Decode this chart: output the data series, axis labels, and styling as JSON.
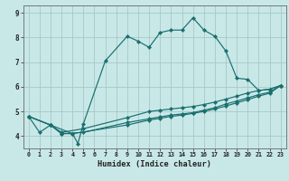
{
  "xlabel": "Humidex (Indice chaleur)",
  "bg_color": "#c8e8e8",
  "grid_color": "#a8c8c8",
  "line_color": "#1a6e6e",
  "xlim": [
    -0.5,
    23.5
  ],
  "ylim": [
    3.5,
    9.3
  ],
  "yticks": [
    4,
    5,
    6,
    7,
    8,
    9
  ],
  "xticks": [
    0,
    1,
    2,
    3,
    4,
    5,
    6,
    7,
    8,
    9,
    10,
    11,
    12,
    13,
    14,
    15,
    16,
    17,
    18,
    19,
    20,
    21,
    22,
    23
  ],
  "line1_x": [
    0,
    1,
    2,
    3,
    4,
    4.5,
    5,
    7,
    9,
    10,
    11,
    12,
    13,
    14,
    15,
    16,
    17,
    18,
    19,
    20,
    21,
    22,
    23
  ],
  "line1_y": [
    4.8,
    4.15,
    4.45,
    4.1,
    4.1,
    3.7,
    4.5,
    7.05,
    8.05,
    7.85,
    7.6,
    8.2,
    8.3,
    8.3,
    8.8,
    8.3,
    8.05,
    7.45,
    6.35,
    6.3,
    5.85,
    5.9,
    6.05
  ],
  "line2_x": [
    0,
    2,
    3,
    5,
    9,
    11,
    12,
    13,
    14,
    15,
    16,
    17,
    18,
    19,
    20,
    21,
    22,
    23
  ],
  "line2_y": [
    4.8,
    4.45,
    4.15,
    4.3,
    4.75,
    5.0,
    5.05,
    5.1,
    5.15,
    5.2,
    5.28,
    5.38,
    5.5,
    5.62,
    5.75,
    5.85,
    5.9,
    6.05
  ],
  "line3_x": [
    0,
    2,
    3,
    5,
    9,
    11,
    12,
    13,
    14,
    15,
    16,
    17,
    18,
    19,
    20,
    21,
    22,
    23
  ],
  "line3_y": [
    4.8,
    4.45,
    4.1,
    4.15,
    4.55,
    4.7,
    4.78,
    4.85,
    4.9,
    4.95,
    5.05,
    5.15,
    5.3,
    5.42,
    5.55,
    5.68,
    5.78,
    6.05
  ],
  "line4_x": [
    0,
    2,
    4,
    9,
    11,
    12,
    13,
    14,
    15,
    16,
    17,
    18,
    19,
    20,
    21,
    22,
    23
  ],
  "line4_y": [
    4.8,
    4.45,
    4.1,
    4.45,
    4.65,
    4.72,
    4.8,
    4.85,
    4.92,
    5.0,
    5.1,
    5.22,
    5.35,
    5.48,
    5.62,
    5.74,
    6.05
  ]
}
